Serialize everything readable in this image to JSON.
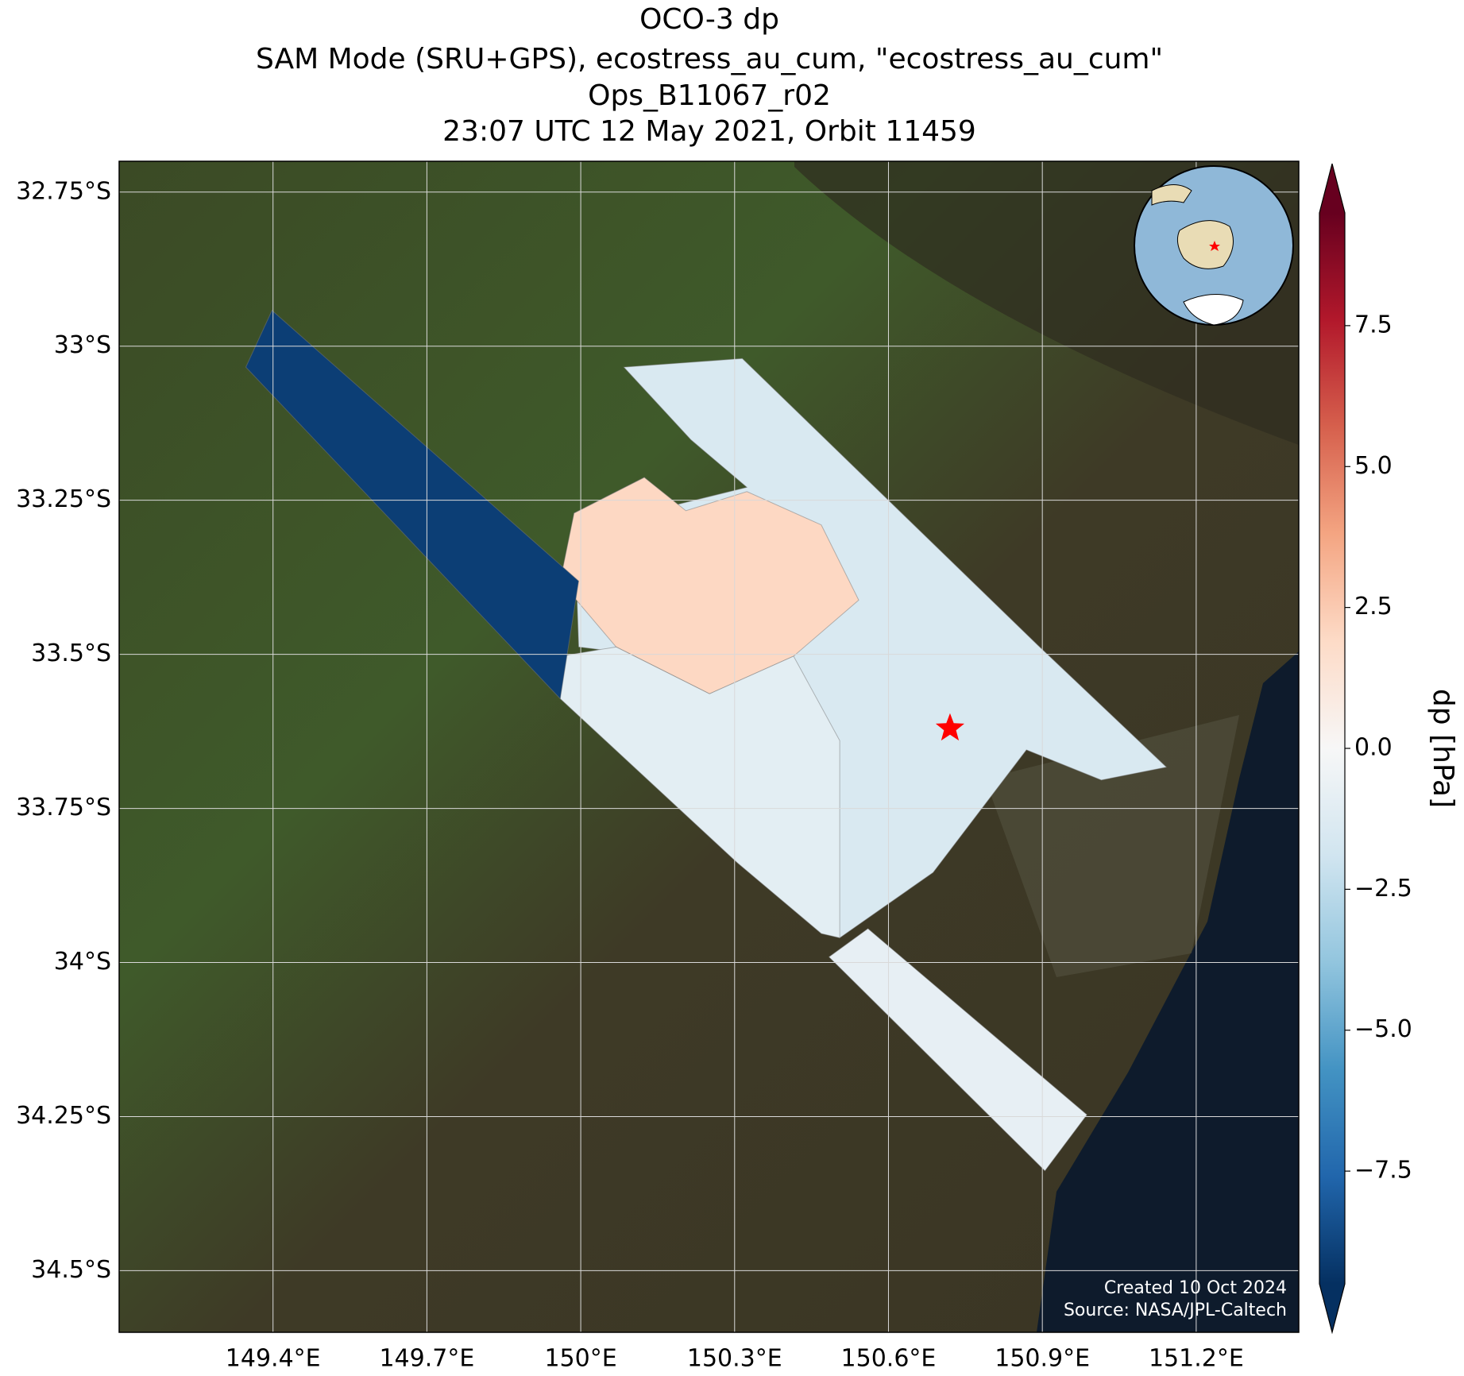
{
  "chart_data": {
    "type": "map",
    "title": [
      "OCO-3 dp",
      "SAM Mode (SRU+GPS), ecostress_au_cum, \"ecostress_au_cum\"",
      "Ops_B11067_r02",
      "23:07 UTC 12 May 2021, Orbit 11459"
    ],
    "xlim": [
      149.1,
      151.4
    ],
    "ylim": [
      -34.6,
      -32.7
    ],
    "xticks": [
      {
        "value": 149.4,
        "label": "149.4°E"
      },
      {
        "value": 149.7,
        "label": "149.7°E"
      },
      {
        "value": 150,
        "label": "150°E"
      },
      {
        "value": 150.3,
        "label": "150.3°E"
      },
      {
        "value": 150.6,
        "label": "150.6°E"
      },
      {
        "value": 150.9,
        "label": "150.9°E"
      },
      {
        "value": 151.2,
        "label": "151.2°E"
      }
    ],
    "yticks": [
      {
        "value": -32.75,
        "label": "32.75°S"
      },
      {
        "value": -33,
        "label": "33°S"
      },
      {
        "value": -33.25,
        "label": "33.25°S"
      },
      {
        "value": -33.5,
        "label": "33.5°S"
      },
      {
        "value": -33.75,
        "label": "33.75°S"
      },
      {
        "value": -34,
        "label": "34°S"
      },
      {
        "value": -34.25,
        "label": "34.25°S"
      },
      {
        "value": -34.5,
        "label": "34.5°S"
      }
    ],
    "grid": true,
    "regions": [
      {
        "polygon": [
          [
            150.084,
            -33.034
          ],
          [
            150.315,
            -33.02
          ],
          [
            150.891,
            -33.485
          ],
          [
            151.142,
            -33.683
          ],
          [
            151.015,
            -33.704
          ],
          [
            150.869,
            -33.655
          ],
          [
            150.687,
            -33.854
          ],
          [
            150.505,
            -33.96
          ],
          [
            150.396,
            -33.854
          ],
          [
            150.305,
            -33.572
          ],
          [
            150.142,
            -33.503
          ],
          [
            149.996,
            -33.488
          ],
          [
            149.987,
            -33.271
          ],
          [
            150.124,
            -33.213
          ],
          [
            150.178,
            -33.259
          ],
          [
            150.324,
            -33.229
          ],
          [
            150.215,
            -33.152
          ]
        ],
        "value": -1.5
      },
      {
        "polygon": [
          [
            149.987,
            -33.271
          ],
          [
            150.124,
            -33.213
          ],
          [
            150.205,
            -33.267
          ],
          [
            150.324,
            -33.236
          ],
          [
            150.469,
            -33.29
          ],
          [
            150.542,
            -33.412
          ],
          [
            150.415,
            -33.503
          ],
          [
            150.251,
            -33.564
          ],
          [
            150.069,
            -33.488
          ],
          [
            149.96,
            -33.381
          ]
        ],
        "value": 2.0
      },
      {
        "polygon": [
          [
            149.96,
            -33.503
          ],
          [
            150.069,
            -33.488
          ],
          [
            150.251,
            -33.564
          ],
          [
            150.415,
            -33.503
          ],
          [
            150.505,
            -33.64
          ],
          [
            150.505,
            -33.96
          ],
          [
            150.469,
            -33.953
          ],
          [
            150.305,
            -33.838
          ],
          [
            149.96,
            -33.572
          ]
        ],
        "value": -1.0
      },
      {
        "polygon": [
          [
            149.347,
            -33.034
          ],
          [
            149.398,
            -32.942
          ],
          [
            149.996,
            -33.381
          ],
          [
            149.96,
            -33.572
          ]
        ],
        "value": -9.0
      },
      {
        "polygon": [
          [
            150.484,
            -33.991
          ],
          [
            150.56,
            -33.945
          ],
          [
            150.987,
            -34.247
          ],
          [
            150.905,
            -34.338
          ]
        ],
        "value": -0.8
      }
    ],
    "target": {
      "lon": 150.72,
      "lat": -33.62,
      "color": "#ff0000"
    },
    "colormap": [
      "#053061",
      "#2166ac",
      "#4393c3",
      "#92c5de",
      "#d1e5f0",
      "#f7f7f7",
      "#fddbc7",
      "#f4a582",
      "#d6604d",
      "#b2182b",
      "#67001f"
    ],
    "clim": [
      -9.5,
      9.5
    ],
    "cticks": [
      {
        "value": -7.5,
        "label": "−7.5"
      },
      {
        "value": -5,
        "label": "−5.0"
      },
      {
        "value": -2.5,
        "label": "−2.5"
      },
      {
        "value": 0,
        "label": "0.0"
      },
      {
        "value": 2.5,
        "label": "2.5"
      },
      {
        "value": 5,
        "label": "5.0"
      },
      7.5
    ],
    "colorbar_label": "dp [hPa]",
    "credits": [
      "Created 10 Oct 2024",
      "Source: NASA/JPL-Caltech"
    ]
  }
}
